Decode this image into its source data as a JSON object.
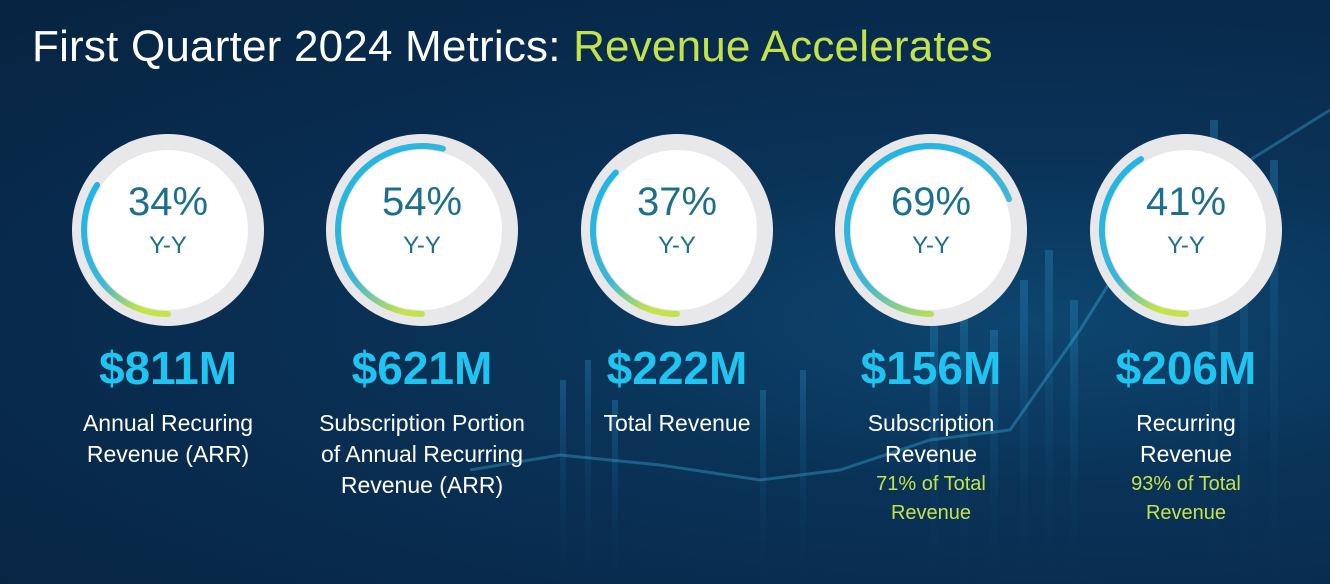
{
  "title": {
    "main": "First Quarter 2024 Metrics: ",
    "accent": "Revenue Accelerates"
  },
  "colors": {
    "accent_green": "#c4e34a",
    "value_cyan": "#1fc4f0",
    "ring_blue": "#1ab5e6",
    "ring_track": "#e8e8ea"
  },
  "metrics": [
    {
      "pct": "34%",
      "period": "Y-Y",
      "value": "$811M",
      "label_lines": [
        "Annual Recuring",
        "Revenue (ARR)"
      ],
      "note_lines": []
    },
    {
      "pct": "54%",
      "period": "Y-Y",
      "value": "$621M",
      "label_lines": [
        "Subscription Portion",
        "of Annual Recurring",
        "Revenue (ARR)"
      ],
      "note_lines": []
    },
    {
      "pct": "37%",
      "period": "Y-Y",
      "value": "$222M",
      "label_lines": [
        "Total Revenue"
      ],
      "note_lines": []
    },
    {
      "pct": "69%",
      "period": "Y-Y",
      "value": "$156M",
      "label_lines": [
        "Subscription",
        "Revenue"
      ],
      "note_lines": [
        "71% of Total",
        "Revenue"
      ]
    },
    {
      "pct": "41%",
      "period": "Y-Y",
      "value": "$206M",
      "label_lines": [
        "Recurring",
        "Revenue"
      ],
      "note_lines": [
        "93% of Total",
        "Revenue"
      ]
    }
  ]
}
